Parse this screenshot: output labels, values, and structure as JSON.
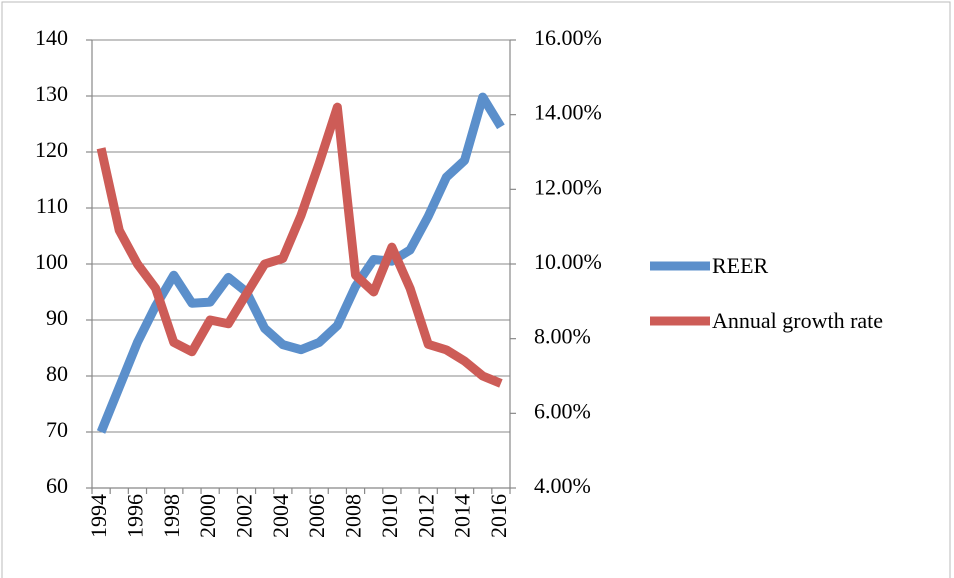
{
  "chart_data": {
    "type": "line",
    "categories": [
      "1994",
      null,
      "1996",
      null,
      "1998",
      null,
      "2000",
      null,
      "2002",
      null,
      "2004",
      null,
      "2006",
      null,
      "2008",
      null,
      "2010",
      null,
      "2012",
      null,
      "2014",
      null,
      "2016"
    ],
    "series": [
      {
        "name": "REER",
        "color": "#5b8fcb",
        "values": [
          70,
          78,
          86,
          92.5,
          98,
          93,
          93.2,
          97.6,
          95,
          88.5,
          85.6,
          84.7,
          86,
          89,
          96,
          100.8,
          100.5,
          102.5,
          108.5,
          115.5,
          118.5,
          129.8,
          124.5
        ]
      },
      {
        "name": "Annual growth rate",
        "color": "#cd5c57",
        "axis": "y2",
        "values": [
          13.1,
          10.9,
          10.0,
          9.35,
          7.9,
          7.65,
          8.5,
          8.4,
          9.2,
          10.0,
          10.15,
          11.3,
          12.7,
          14.2,
          9.7,
          9.25,
          10.45,
          9.35,
          7.85,
          7.7,
          7.4,
          7.0,
          6.8
        ]
      }
    ],
    "ylim": [
      60,
      140
    ],
    "yticks": [
      60,
      70,
      80,
      90,
      100,
      110,
      120,
      130,
      140
    ],
    "y2lim": [
      4,
      16
    ],
    "y2ticks": [
      {
        "value": 4,
        "label": "4.00%"
      },
      {
        "value": 6,
        "label": "6.00%"
      },
      {
        "value": 8,
        "label": "8.00%"
      },
      {
        "value": 10,
        "label": "10.00%"
      },
      {
        "value": 12,
        "label": "12.00%"
      },
      {
        "value": 14,
        "label": "14.00%"
      },
      {
        "value": 16,
        "label": "16.00%"
      }
    ],
    "grid": true,
    "legend": "right"
  }
}
